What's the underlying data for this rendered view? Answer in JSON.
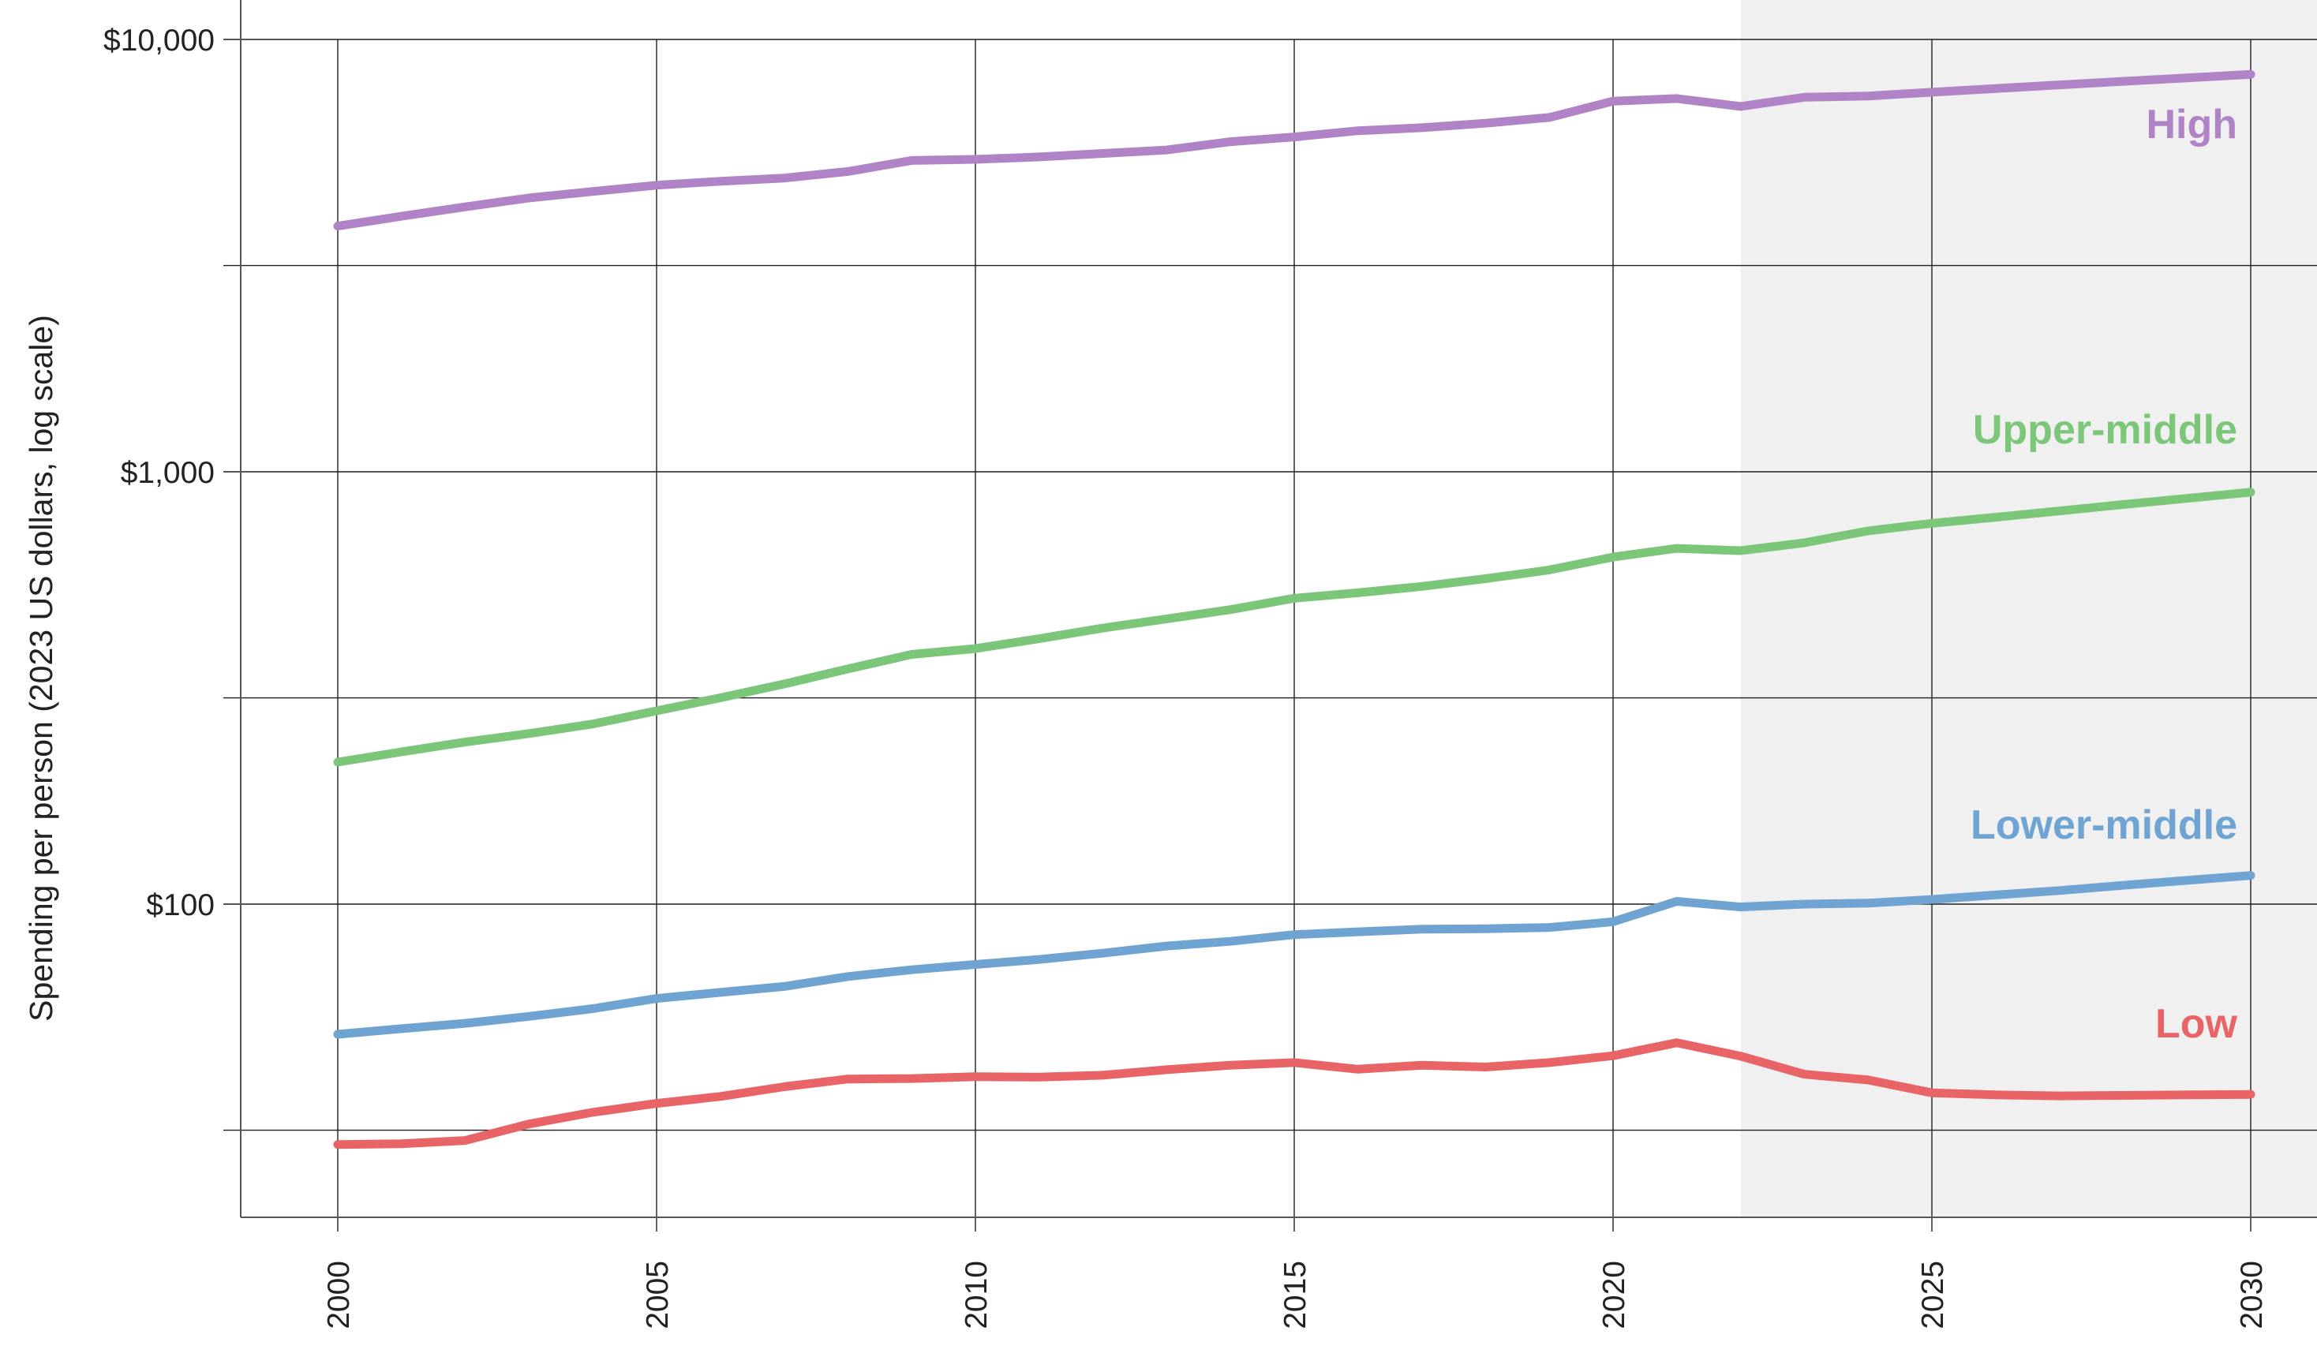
{
  "chart_data": {
    "type": "line",
    "title": "",
    "xlabel": "",
    "ylabel": "Spending per person (2023 US dollars, log scale)",
    "yscale": "log",
    "ylim": [
      16.5,
      10000
    ],
    "xlim": [
      1998.5,
      2031
    ],
    "grid": true,
    "projection_shaded_from": 2022,
    "x_ticks": [
      2000,
      2005,
      2010,
      2015,
      2020,
      2025,
      2030
    ],
    "x_tick_labels": [
      "2000",
      "2005",
      "2010",
      "2015",
      "2020",
      "2025",
      "2030"
    ],
    "y_ticks_labeled": [
      100,
      1000,
      10000
    ],
    "y_tick_labels": [
      "$100",
      "$1,000",
      "$10,000"
    ],
    "y_gridlines": [
      30,
      100,
      300,
      1000,
      3000,
      10000
    ],
    "x": [
      2000,
      2001,
      2002,
      2003,
      2004,
      2005,
      2006,
      2007,
      2008,
      2009,
      2010,
      2011,
      2012,
      2013,
      2014,
      2015,
      2016,
      2017,
      2018,
      2019,
      2020,
      2021,
      2022,
      2023,
      2024,
      2025,
      2026,
      2027,
      2028,
      2029,
      2030
    ],
    "series": [
      {
        "name": "High",
        "color": "#b083c6",
        "values": [
          3700,
          3900,
          4100,
          4300,
          4450,
          4600,
          4700,
          4780,
          4950,
          5250,
          5280,
          5350,
          5450,
          5550,
          5800,
          5950,
          6150,
          6250,
          6400,
          6600,
          7200,
          7300,
          7000,
          7350,
          7400,
          7550,
          7700,
          7850,
          8000,
          8150,
          8300
        ]
      },
      {
        "name": "Upper-middle",
        "color": "#7cc67a",
        "values": [
          213,
          225,
          237,
          248,
          261,
          280,
          300,
          323,
          350,
          378,
          390,
          411,
          435,
          457,
          480,
          510,
          525,
          543,
          566,
          593,
          635,
          665,
          657,
          685,
          730,
          760,
          785,
          812,
          840,
          868,
          897
        ]
      },
      {
        "name": "Lower-middle",
        "color": "#6fa3d2",
        "values": [
          50,
          51.5,
          53,
          55,
          57.3,
          60.5,
          62.5,
          64.5,
          68,
          70.5,
          72.5,
          74.5,
          77,
          80,
          82,
          85,
          86.3,
          87.5,
          87.7,
          88.3,
          91,
          101.5,
          98.5,
          100,
          100.5,
          102.5,
          105,
          107.5,
          110.5,
          113.5,
          116.5
        ]
      },
      {
        "name": "Low",
        "color": "#e86466",
        "values": [
          27.8,
          27.9,
          28.4,
          31,
          33,
          34.6,
          35.9,
          37.8,
          39.4,
          39.5,
          39.9,
          39.8,
          40.2,
          41.4,
          42.4,
          43,
          41.5,
          42.4,
          42,
          43,
          44.6,
          47.8,
          44.5,
          40.4,
          39.2,
          36.6,
          36.2,
          36,
          36.1,
          36.2,
          36.3
        ]
      }
    ]
  }
}
